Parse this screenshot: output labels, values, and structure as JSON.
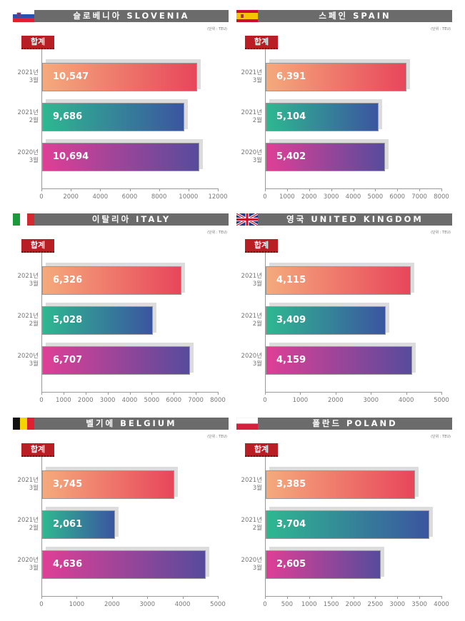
{
  "unit_label": "(단위 : TEU)",
  "badge_label": "합계",
  "chart_data": [
    {
      "type": "bar",
      "title": "슬로베니아 SLOVENIA",
      "flag": "slovenia",
      "categories": [
        [
          "2021년",
          "3월"
        ],
        [
          "2021년",
          "2월"
        ],
        [
          "2020년",
          "3월"
        ]
      ],
      "values": [
        10547,
        9686,
        10694
      ],
      "value_labels": [
        "10,547",
        "9,686",
        "10,694"
      ],
      "xlim": [
        0,
        12000
      ],
      "ticks": [
        0,
        2000,
        4000,
        6000,
        8000,
        10000,
        12000
      ]
    },
    {
      "type": "bar",
      "title": "스페인 SPAIN",
      "flag": "spain",
      "categories": [
        [
          "2021년",
          "3월"
        ],
        [
          "2021년",
          "2월"
        ],
        [
          "2020년",
          "3월"
        ]
      ],
      "values": [
        6391,
        5104,
        5402
      ],
      "value_labels": [
        "6,391",
        "5,104",
        "5,402"
      ],
      "xlim": [
        0,
        8000
      ],
      "ticks": [
        0,
        1000,
        2000,
        3000,
        4000,
        5000,
        6000,
        7000,
        8000
      ]
    },
    {
      "type": "bar",
      "title": "이탈리아 ITALY",
      "flag": "italy",
      "categories": [
        [
          "2021년",
          "3월"
        ],
        [
          "2021년",
          "2월"
        ],
        [
          "2020년",
          "3월"
        ]
      ],
      "values": [
        6326,
        5028,
        6707
      ],
      "value_labels": [
        "6,326",
        "5,028",
        "6,707"
      ],
      "xlim": [
        0,
        8000
      ],
      "ticks": [
        0,
        1000,
        2000,
        3000,
        4000,
        5000,
        6000,
        7000,
        8000
      ]
    },
    {
      "type": "bar",
      "title": "영국 UNITED KINGDOM",
      "flag": "uk",
      "categories": [
        [
          "2021년",
          "3월"
        ],
        [
          "2021년",
          "2월"
        ],
        [
          "2020년",
          "3월"
        ]
      ],
      "values": [
        4115,
        3409,
        4159
      ],
      "value_labels": [
        "4,115",
        "3,409",
        "4,159"
      ],
      "xlim": [
        0,
        5000
      ],
      "ticks": [
        0,
        1000,
        2000,
        3000,
        4000,
        5000
      ]
    },
    {
      "type": "bar",
      "title": "벨기에 BELGIUM",
      "flag": "belgium",
      "categories": [
        [
          "2021년",
          "3월"
        ],
        [
          "2021년",
          "2월"
        ],
        [
          "2020년",
          "3월"
        ]
      ],
      "values": [
        3745,
        2061,
        4636
      ],
      "value_labels": [
        "3,745",
        "2,061",
        "4,636"
      ],
      "xlim": [
        0,
        5000
      ],
      "ticks": [
        0,
        1000,
        2000,
        3000,
        4000,
        5000
      ]
    },
    {
      "type": "bar",
      "title": "폴란드 POLAND",
      "flag": "poland",
      "categories": [
        [
          "2021년",
          "3월"
        ],
        [
          "2021년",
          "2월"
        ],
        [
          "2020년",
          "3월"
        ]
      ],
      "values": [
        3385,
        3704,
        2605
      ],
      "value_labels": [
        "3,385",
        "3,704",
        "2,605"
      ],
      "xlim": [
        0,
        4000
      ],
      "ticks": [
        0,
        500,
        1000,
        1500,
        2000,
        2500,
        3000,
        3500,
        4000
      ]
    }
  ],
  "colors": {
    "row1": [
      "#f5aa7c",
      "#e8465b"
    ],
    "row2": [
      "#2eb890",
      "#3b55a0"
    ],
    "row3": [
      "#df3f96",
      "#574b9c"
    ]
  }
}
